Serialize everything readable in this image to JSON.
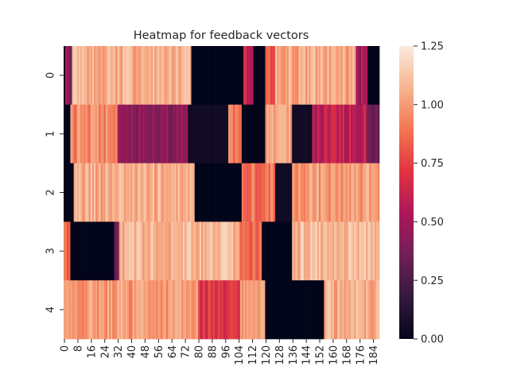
{
  "chart_data": {
    "type": "heatmap",
    "title": "Heatmap for feedback vectors",
    "xlabel": "",
    "ylabel": "",
    "n_columns": 188,
    "row_labels": [
      "0",
      "1",
      "2",
      "3",
      "4"
    ],
    "x_tick_labels": [
      "0",
      "8",
      "16",
      "24",
      "32",
      "40",
      "48",
      "56",
      "64",
      "72",
      "80",
      "88",
      "96",
      "104",
      "112",
      "120",
      "128",
      "136",
      "144",
      "152",
      "160",
      "168",
      "176",
      "184"
    ],
    "colorbar": {
      "vmin": 0.0,
      "vmax": 1.25,
      "tick_values": [
        0.0,
        0.25,
        0.5,
        0.75,
        1.0,
        1.25
      ],
      "tick_labels": [
        "0.00",
        "0.25",
        "0.50",
        "0.75",
        "1.00",
        "1.25"
      ],
      "colormap": "rocket",
      "colormap_stops": [
        "#03051a",
        "#35193e",
        "#701f57",
        "#ad1759",
        "#e13342",
        "#f37651",
        "#f6b48f",
        "#faebdd"
      ]
    },
    "rows": [
      {
        "label": "0",
        "segments": [
          {
            "from": 0,
            "to": 1,
            "value": 0.0
          },
          {
            "from": 1,
            "to": 5,
            "value": 0.45
          },
          {
            "from": 5,
            "to": 76,
            "value": 1.05
          },
          {
            "from": 76,
            "to": 107,
            "value": 0.0
          },
          {
            "from": 107,
            "to": 113,
            "value": 0.6
          },
          {
            "from": 113,
            "to": 120,
            "value": 0.0
          },
          {
            "from": 120,
            "to": 126,
            "value": 0.85
          },
          {
            "from": 126,
            "to": 132,
            "value": 1.05
          },
          {
            "from": 132,
            "to": 174,
            "value": 1.05
          },
          {
            "from": 174,
            "to": 181,
            "value": 0.5
          },
          {
            "from": 181,
            "to": 188,
            "value": 0.0
          }
        ]
      },
      {
        "label": "1",
        "segments": [
          {
            "from": 0,
            "to": 4,
            "value": 0.0
          },
          {
            "from": 4,
            "to": 32,
            "value": 0.95
          },
          {
            "from": 32,
            "to": 74,
            "value": 0.45
          },
          {
            "from": 74,
            "to": 98,
            "value": 0.05
          },
          {
            "from": 98,
            "to": 106,
            "value": 0.9
          },
          {
            "from": 106,
            "to": 120,
            "value": 0.0
          },
          {
            "from": 120,
            "to": 136,
            "value": 1.0
          },
          {
            "from": 136,
            "to": 148,
            "value": 0.05
          },
          {
            "from": 148,
            "to": 180,
            "value": 0.6
          },
          {
            "from": 180,
            "to": 188,
            "value": 0.35
          }
        ]
      },
      {
        "label": "2",
        "segments": [
          {
            "from": 0,
            "to": 6,
            "value": 0.0
          },
          {
            "from": 6,
            "to": 78,
            "value": 1.05
          },
          {
            "from": 78,
            "to": 106,
            "value": 0.0
          },
          {
            "from": 106,
            "to": 126,
            "value": 0.9
          },
          {
            "from": 126,
            "to": 136,
            "value": 0.05
          },
          {
            "from": 136,
            "to": 188,
            "value": 1.0
          }
        ]
      },
      {
        "label": "3",
        "segments": [
          {
            "from": 0,
            "to": 4,
            "value": 0.85
          },
          {
            "from": 4,
            "to": 30,
            "value": 0.0
          },
          {
            "from": 30,
            "to": 33,
            "value": 0.3
          },
          {
            "from": 33,
            "to": 105,
            "value": 1.08
          },
          {
            "from": 105,
            "to": 118,
            "value": 0.85
          },
          {
            "from": 118,
            "to": 136,
            "value": 0.0
          },
          {
            "from": 136,
            "to": 188,
            "value": 1.1
          }
        ]
      },
      {
        "label": "4",
        "segments": [
          {
            "from": 0,
            "to": 80,
            "value": 1.0
          },
          {
            "from": 80,
            "to": 105,
            "value": 0.7
          },
          {
            "from": 105,
            "to": 120,
            "value": 1.0
          },
          {
            "from": 120,
            "to": 155,
            "value": 0.0
          },
          {
            "from": 155,
            "to": 188,
            "value": 1.05
          }
        ]
      }
    ]
  }
}
